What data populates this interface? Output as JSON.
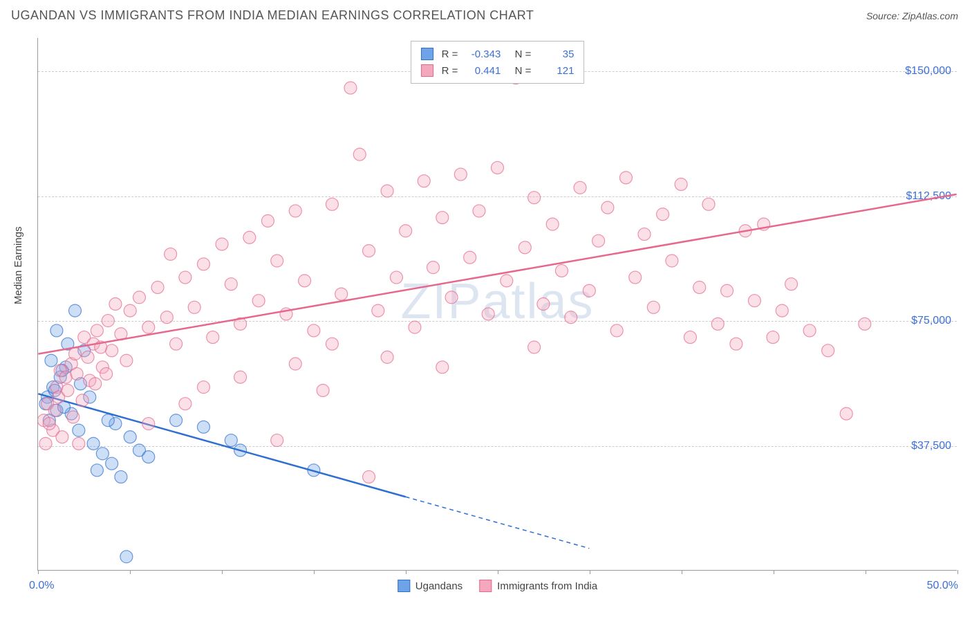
{
  "title": "UGANDAN VS IMMIGRANTS FROM INDIA MEDIAN EARNINGS CORRELATION CHART",
  "source_label": "Source: ",
  "source_name": "ZipAtlas.com",
  "watermark": "ZIPatlas",
  "y_axis_label": "Median Earnings",
  "chart": {
    "type": "scatter",
    "background_color": "#ffffff",
    "grid_color": "#cccccc",
    "axis_color": "#999999",
    "text_color": "#555555",
    "value_color": "#3b6fd8",
    "xlim": [
      0,
      50
    ],
    "ylim": [
      0,
      160000
    ],
    "x_min_label": "0.0%",
    "x_max_label": "50.0%",
    "x_ticks": [
      0,
      5,
      10,
      15,
      20,
      25,
      30,
      35,
      40,
      45,
      50
    ],
    "y_gridlines": [
      37500,
      75000,
      112500,
      150000
    ],
    "y_tick_labels": [
      "$37,500",
      "$75,000",
      "$112,500",
      "$150,000"
    ],
    "marker_radius": 9,
    "marker_opacity_fill": 0.35,
    "marker_opacity_stroke": 0.7,
    "line_width": 2.5,
    "series": [
      {
        "name": "Ugandans",
        "color": "#6fa3e8",
        "stroke": "#2f6fd0",
        "r_value": "-0.343",
        "n_value": "35",
        "trend": {
          "x1": 0,
          "y1": 53000,
          "x2": 20,
          "y2": 22000,
          "dash_x2": 30,
          "dash_y2": 6500
        },
        "points": [
          [
            0.5,
            52000
          ],
          [
            0.8,
            55000
          ],
          [
            1.0,
            48000
          ],
          [
            1.2,
            58000
          ],
          [
            0.6,
            45000
          ],
          [
            1.5,
            61000
          ],
          [
            1.8,
            47000
          ],
          [
            2.0,
            78000
          ],
          [
            2.2,
            42000
          ],
          [
            2.5,
            66000
          ],
          [
            1.0,
            72000
          ],
          [
            0.4,
            50000
          ],
          [
            3.0,
            38000
          ],
          [
            3.2,
            30000
          ],
          [
            3.5,
            35000
          ],
          [
            4.0,
            32000
          ],
          [
            4.2,
            44000
          ],
          [
            4.5,
            28000
          ],
          [
            5.0,
            40000
          ],
          [
            2.8,
            52000
          ],
          [
            1.3,
            60000
          ],
          [
            0.7,
            63000
          ],
          [
            1.6,
            68000
          ],
          [
            2.3,
            56000
          ],
          [
            5.5,
            36000
          ],
          [
            6.0,
            34000
          ],
          [
            3.8,
            45000
          ],
          [
            4.8,
            4000
          ],
          [
            7.5,
            45000
          ],
          [
            9.0,
            43000
          ],
          [
            11.0,
            36000
          ],
          [
            10.5,
            39000
          ],
          [
            15.0,
            30000
          ],
          [
            0.9,
            54000
          ],
          [
            1.4,
            49000
          ]
        ]
      },
      {
        "name": "Immigrants from India",
        "color": "#f5a7bd",
        "stroke": "#e6688c",
        "r_value": "0.441",
        "n_value": "121",
        "trend": {
          "x1": 0,
          "y1": 65000,
          "x2": 50,
          "y2": 113000
        },
        "points": [
          [
            0.3,
            45000
          ],
          [
            0.5,
            50000
          ],
          [
            0.8,
            42000
          ],
          [
            1.0,
            55000
          ],
          [
            1.2,
            60000
          ],
          [
            1.5,
            58000
          ],
          [
            1.8,
            62000
          ],
          [
            2.0,
            65000
          ],
          [
            2.2,
            38000
          ],
          [
            2.5,
            70000
          ],
          [
            2.8,
            57000
          ],
          [
            3.0,
            68000
          ],
          [
            3.2,
            72000
          ],
          [
            3.5,
            61000
          ],
          [
            3.8,
            75000
          ],
          [
            4.0,
            66000
          ],
          [
            4.2,
            80000
          ],
          [
            4.5,
            71000
          ],
          [
            4.8,
            63000
          ],
          [
            5.0,
            78000
          ],
          [
            5.5,
            82000
          ],
          [
            6.0,
            73000
          ],
          [
            6.5,
            85000
          ],
          [
            7.0,
            76000
          ],
          [
            7.2,
            95000
          ],
          [
            7.5,
            68000
          ],
          [
            8.0,
            88000
          ],
          [
            8.5,
            79000
          ],
          [
            9.0,
            92000
          ],
          [
            9.5,
            70000
          ],
          [
            10.0,
            98000
          ],
          [
            10.5,
            86000
          ],
          [
            11.0,
            74000
          ],
          [
            11.5,
            100000
          ],
          [
            12.0,
            81000
          ],
          [
            12.5,
            105000
          ],
          [
            13.0,
            93000
          ],
          [
            13.5,
            77000
          ],
          [
            14.0,
            108000
          ],
          [
            14.5,
            87000
          ],
          [
            15.0,
            72000
          ],
          [
            15.5,
            54000
          ],
          [
            16.0,
            110000
          ],
          [
            16.5,
            83000
          ],
          [
            17.0,
            145000
          ],
          [
            17.5,
            125000
          ],
          [
            18.0,
            96000
          ],
          [
            18.5,
            78000
          ],
          [
            19.0,
            114000
          ],
          [
            19.5,
            88000
          ],
          [
            20.0,
            102000
          ],
          [
            20.5,
            73000
          ],
          [
            21.0,
            117000
          ],
          [
            21.5,
            91000
          ],
          [
            22.0,
            106000
          ],
          [
            22.5,
            82000
          ],
          [
            23.0,
            119000
          ],
          [
            23.5,
            94000
          ],
          [
            24.0,
            108000
          ],
          [
            24.5,
            77000
          ],
          [
            25.0,
            121000
          ],
          [
            25.5,
            87000
          ],
          [
            26.0,
            148000
          ],
          [
            26.5,
            97000
          ],
          [
            27.0,
            112000
          ],
          [
            27.5,
            80000
          ],
          [
            28.0,
            104000
          ],
          [
            28.5,
            90000
          ],
          [
            29.0,
            76000
          ],
          [
            29.5,
            115000
          ],
          [
            30.0,
            84000
          ],
          [
            30.5,
            99000
          ],
          [
            31.0,
            109000
          ],
          [
            31.5,
            72000
          ],
          [
            32.0,
            118000
          ],
          [
            32.5,
            88000
          ],
          [
            33.0,
            101000
          ],
          [
            33.5,
            79000
          ],
          [
            34.0,
            107000
          ],
          [
            34.5,
            93000
          ],
          [
            35.0,
            116000
          ],
          [
            35.5,
            70000
          ],
          [
            36.0,
            85000
          ],
          [
            36.5,
            110000
          ],
          [
            37.0,
            74000
          ],
          [
            37.5,
            84000
          ],
          [
            38.0,
            68000
          ],
          [
            38.5,
            102000
          ],
          [
            39.0,
            81000
          ],
          [
            39.5,
            104000
          ],
          [
            40.0,
            70000
          ],
          [
            40.5,
            78000
          ],
          [
            41.0,
            86000
          ],
          [
            42.0,
            72000
          ],
          [
            43.0,
            66000
          ],
          [
            44.0,
            47000
          ],
          [
            45.0,
            74000
          ],
          [
            0.4,
            38000
          ],
          [
            0.6,
            44000
          ],
          [
            0.9,
            48000
          ],
          [
            1.1,
            52000
          ],
          [
            1.3,
            40000
          ],
          [
            1.6,
            54000
          ],
          [
            1.9,
            46000
          ],
          [
            2.1,
            59000
          ],
          [
            2.4,
            51000
          ],
          [
            2.7,
            64000
          ],
          [
            3.1,
            56000
          ],
          [
            3.4,
            67000
          ],
          [
            3.7,
            59000
          ],
          [
            18.0,
            28000
          ],
          [
            13.0,
            39000
          ],
          [
            8.0,
            50000
          ],
          [
            6.0,
            44000
          ],
          [
            11.0,
            58000
          ],
          [
            14.0,
            62000
          ],
          [
            9.0,
            55000
          ],
          [
            16.0,
            68000
          ],
          [
            19.0,
            64000
          ],
          [
            22.0,
            61000
          ],
          [
            27.0,
            67000
          ]
        ]
      }
    ]
  }
}
